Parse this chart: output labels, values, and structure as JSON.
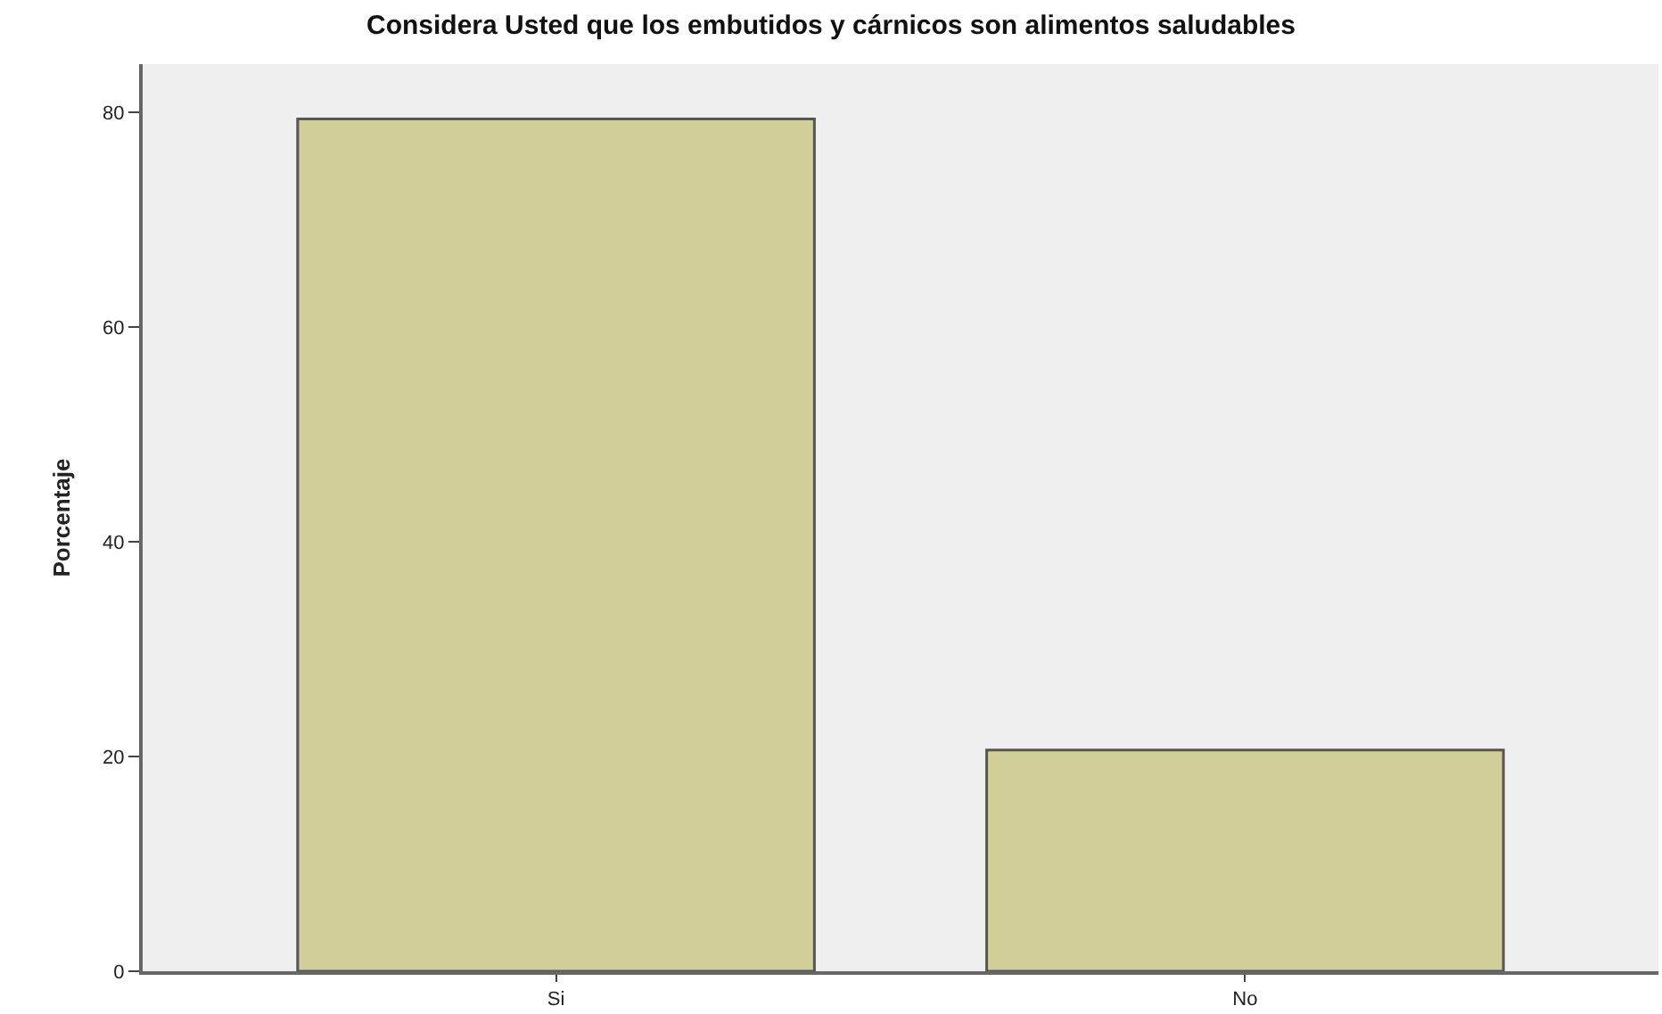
{
  "chart_data": {
    "type": "bar",
    "title": "Considera Usted que los embutidos y cárnicos son alimentos saludables",
    "ylabel": "Porcentaje",
    "categories": [
      "Si",
      "No"
    ],
    "values": [
      79.4,
      20.6
    ],
    "color": "#d2ce98",
    "ylim": [
      0,
      84.5
    ],
    "yticks": [
      0,
      20,
      40,
      60,
      80
    ],
    "grid": false
  }
}
